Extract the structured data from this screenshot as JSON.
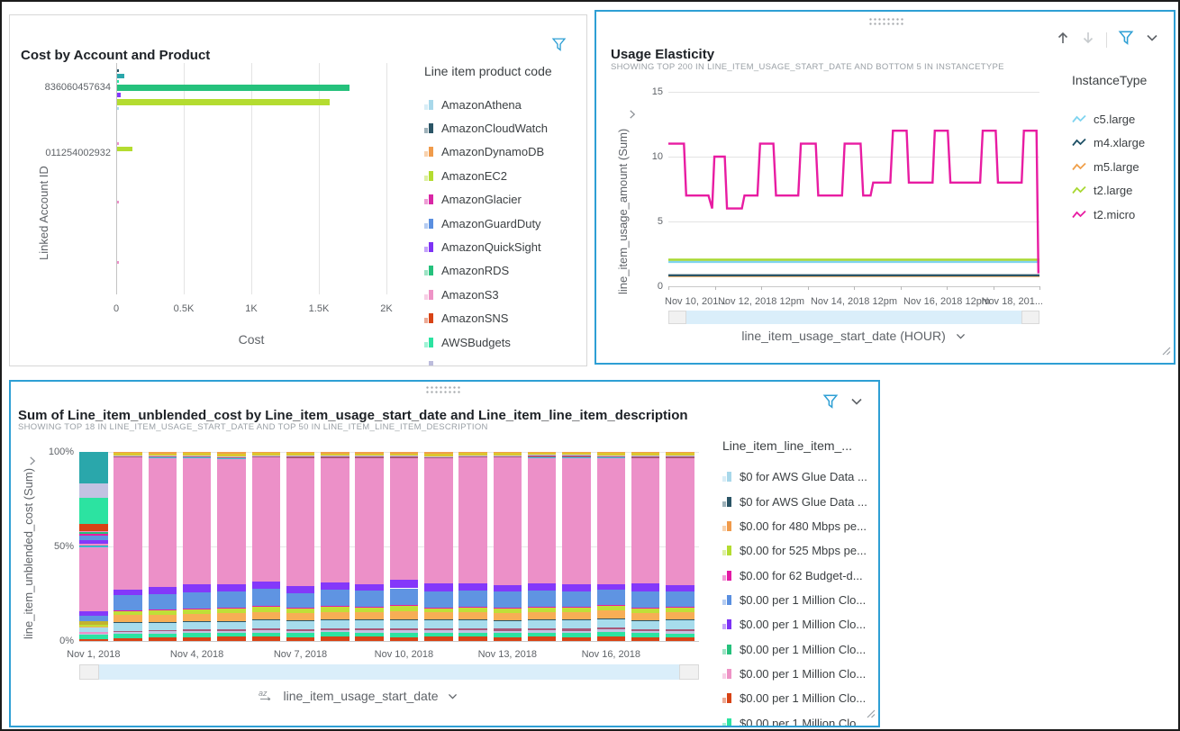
{
  "app": {
    "accent": "#2e9fd4",
    "background": "#ffffff"
  },
  "palette": {
    "red": "#d84315",
    "spring": "#2ce3a1",
    "lav": "#c3c2e2",
    "maroon": "#a85878",
    "ltblue": "#a7dcec",
    "navy": "#2b5566",
    "orange": "#f7ae55",
    "lime": "#bfdf38",
    "magenta": "#e81ca2",
    "blue": "#5f94e2",
    "purple": "#8438fa",
    "pink": "#ec90c8",
    "cyan": "#3ec9e6",
    "maroon2": "#a85878",
    "lav2": "#c3c2e2",
    "yellow": "#ddc62e",
    "orangecap": "#f0a04b",
    "olive": "#c2b22e",
    "teal": "#2aa7ab",
    "green": "#25c17c",
    "tealbar": "#2aa7ab",
    "ec2lime": "#b4dc30"
  },
  "cost_panel": {
    "title": "Cost by Account and Product",
    "y_axis_label": "Linked Account ID",
    "x_axis_label": "Cost",
    "legend_title": "Line item product code",
    "legend": [
      {
        "label": "AmazonAthena",
        "color": "#a8d8ea"
      },
      {
        "label": "AmazonCloudWatch",
        "color": "#2b5566"
      },
      {
        "label": "AmazonDynamoDB",
        "color": "#f09b4b"
      },
      {
        "label": "AmazonEC2",
        "color": "#b4dc30"
      },
      {
        "label": "AmazonGlacier",
        "color": "#d926a5"
      },
      {
        "label": "AmazonGuardDuty",
        "color": "#5a8fe0"
      },
      {
        "label": "AmazonQuickSight",
        "color": "#7d32f5"
      },
      {
        "label": "AmazonRDS",
        "color": "#25c17c"
      },
      {
        "label": "AmazonS3",
        "color": "#ee93c6"
      },
      {
        "label": "AmazonSNS",
        "color": "#d84315"
      },
      {
        "label": "AWSBudgets",
        "color": "#2ce3a1"
      },
      {
        "label": "",
        "color": "#bcbcdc"
      }
    ],
    "chart_data": {
      "type": "bar",
      "orientation": "horizontal",
      "x_ticks": [
        "0",
        "0.5K",
        "1K",
        "1.5K",
        "2K"
      ],
      "x_max": 2000,
      "groups": [
        {
          "account": "836060457634",
          "bars": [
            {
              "color_key": "navy",
              "value": 8
            },
            {
              "color_key": "tealbar",
              "value": 50
            },
            {
              "color_key": "spring",
              "value": 8
            },
            {
              "color_key": "green",
              "value": 1720
            },
            {
              "color_key": "purple",
              "value": 25
            },
            {
              "color_key": "ec2lime",
              "value": 1570
            },
            {
              "color_key": "ltblue",
              "value": 6
            }
          ]
        },
        {
          "account": "011254002932",
          "bars": [
            {
              "color_key": "pink",
              "value": 5
            },
            {
              "color_key": "ec2lime",
              "value": 110
            }
          ]
        },
        {
          "account": "",
          "bars": [
            {
              "color_key": "pink",
              "value": 5
            }
          ]
        },
        {
          "account": "",
          "bars": [
            {
              "color_key": "pink",
              "value": 5
            }
          ]
        }
      ]
    }
  },
  "usage_panel": {
    "title": "Usage Elasticity",
    "subtitle": "SHOWING TOP 200 IN LINE_ITEM_USAGE_START_DATE AND BOTTOM 5 IN INSTANCETYPE",
    "y_axis_label": "line_item_usage_amount (Sum)",
    "x_axis_name": "line_item_usage_start_date (HOUR)",
    "legend_title": "InstanceType",
    "legend": [
      {
        "label": "c5.large",
        "color": "#7fd4f0"
      },
      {
        "label": "m4.xlarge",
        "color": "#1f5166"
      },
      {
        "label": "m5.large",
        "color": "#f0a04b"
      },
      {
        "label": "t2.large",
        "color": "#a8d832"
      },
      {
        "label": "t2.micro",
        "color": "#e81ca2"
      }
    ],
    "chart_data": {
      "type": "line",
      "y_ticks": [
        0,
        5,
        10,
        15
      ],
      "y_max": 15,
      "x_ticks": [
        "Nov 10, 201...",
        "Nov 12, 2018 12pm",
        "Nov 14, 2018 12pm",
        "Nov 16, 2018 12pm",
        "Nov 18, 201..."
      ],
      "series": [
        {
          "name": "m5.large",
          "color": "#f0a04b",
          "points": [
            [
              0,
              0.8
            ],
            [
              1,
              0.8
            ]
          ]
        },
        {
          "name": "m4.xlarge",
          "color": "#2b5566",
          "points": [
            [
              0,
              0.85
            ],
            [
              1,
              0.85
            ]
          ]
        },
        {
          "name": "c5.large",
          "color": "#7fd4f0",
          "points": [
            [
              0,
              1.88
            ],
            [
              1,
              1.88
            ]
          ]
        },
        {
          "name": "t2.large",
          "color": "#a8d832",
          "points": [
            [
              0,
              2.05
            ],
            [
              1,
              2.05
            ]
          ]
        },
        {
          "name": "t2.micro",
          "color": "#e81ca2",
          "points": [
            [
              0,
              11
            ],
            [
              0.042,
              11
            ],
            [
              0.048,
              7
            ],
            [
              0.108,
              7
            ],
            [
              0.118,
              6
            ],
            [
              0.124,
              10
            ],
            [
              0.152,
              10
            ],
            [
              0.158,
              6
            ],
            [
              0.198,
              6
            ],
            [
              0.205,
              7
            ],
            [
              0.24,
              7
            ],
            [
              0.247,
              11
            ],
            [
              0.283,
              11
            ],
            [
              0.29,
              7
            ],
            [
              0.35,
              7
            ],
            [
              0.357,
              11
            ],
            [
              0.397,
              11
            ],
            [
              0.404,
              7
            ],
            [
              0.468,
              7
            ],
            [
              0.475,
              11
            ],
            [
              0.518,
              11
            ],
            [
              0.525,
              7
            ],
            [
              0.545,
              7
            ],
            [
              0.552,
              8
            ],
            [
              0.598,
              8
            ],
            [
              0.605,
              12
            ],
            [
              0.642,
              12
            ],
            [
              0.648,
              8
            ],
            [
              0.712,
              8
            ],
            [
              0.718,
              12
            ],
            [
              0.753,
              12
            ],
            [
              0.76,
              8
            ],
            [
              0.84,
              8
            ],
            [
              0.847,
              12
            ],
            [
              0.882,
              12
            ],
            [
              0.888,
              8
            ],
            [
              0.952,
              8
            ],
            [
              0.958,
              12
            ],
            [
              0.992,
              12
            ],
            [
              0.997,
              1
            ]
          ]
        }
      ]
    }
  },
  "stacked_panel": {
    "title": "Sum of Line_item_unblended_cost by Line_item_usage_start_date and Line_item_line_item_description",
    "subtitle": "SHOWING TOP 18 IN LINE_ITEM_USAGE_START_DATE AND TOP 50 IN LINE_ITEM_LINE_ITEM_DESCRIPTION",
    "y_axis_label": "line_item_unblended_cost (Sum)",
    "x_axis_name": "line_item_usage_start_date",
    "legend_title": "Line_item_line_item_...",
    "legend": [
      {
        "label": "$0 for AWS Glue Data ...",
        "color": "#a8d8ea"
      },
      {
        "label": "$0 for AWS Glue Data ...",
        "color": "#2b5566"
      },
      {
        "label": "$0.00 for 480 Mbps pe...",
        "color": "#f09b4b"
      },
      {
        "label": "$0.00 for 525 Mbps pe...",
        "color": "#b4dc30"
      },
      {
        "label": "$0.00 for 62 Budget-d...",
        "color": "#e31ba5"
      },
      {
        "label": "$0.00 per 1 Million Clo...",
        "color": "#5a8fe0"
      },
      {
        "label": "$0.00 per 1 Million Clo...",
        "color": "#7d32f5"
      },
      {
        "label": "$0.00 per 1 Million Clo...",
        "color": "#25c17c"
      },
      {
        "label": "$0.00 per 1 Million Clo...",
        "color": "#ee93c6"
      },
      {
        "label": "$0.00 per 1 Million Clo...",
        "color": "#d84315"
      },
      {
        "label": "$0.00 per 1 Million Clo...",
        "color": "#2ce3a1"
      }
    ],
    "chart_data": {
      "type": "stacked-bar-100",
      "y_ticks": [
        "0%",
        "50%",
        "100%"
      ],
      "x_tick_labels": [
        "Nov 1, 2018",
        "Nov 4, 2018",
        "Nov 7, 2018",
        "Nov 10, 2018",
        "Nov 13, 2018",
        "Nov 16, 2018"
      ],
      "x_tick_every": 3,
      "segment_order": [
        "red",
        "spring",
        "lav",
        "maroon",
        "ltblue",
        "navy",
        "orange",
        "lime",
        "magenta",
        "blue",
        "purple",
        "pink",
        "cyan",
        "maroon2",
        "lav2",
        "yellow",
        "orangecap"
      ],
      "first_bar_segments": [
        [
          "red",
          0.8
        ],
        [
          "spring",
          2.6
        ],
        [
          "lav",
          0.5
        ],
        [
          "pink",
          0.7
        ],
        [
          "ltblue",
          2.4
        ],
        [
          "orange",
          0.6
        ],
        [
          "lime",
          1.2
        ],
        [
          "olive",
          1.6
        ],
        [
          "blue",
          3.0
        ],
        [
          "purple",
          2.2
        ],
        [
          "pink",
          33.9
        ],
        [
          "cyan",
          0.5
        ],
        [
          "teal",
          0.7
        ],
        [
          "pink",
          0.6
        ],
        [
          "purple",
          2.0
        ],
        [
          "blue",
          2.6
        ],
        [
          "magenta",
          0.6
        ],
        [
          "green",
          0.9
        ],
        [
          "pink",
          0.7
        ],
        [
          "red",
          4.0
        ],
        [
          "spring",
          13.6
        ],
        [
          "lav",
          7.4
        ],
        [
          "teal",
          16.9
        ]
      ],
      "bars": [
        [
          1.6,
          2.0,
          1.0,
          0.8,
          4.4,
          0.3,
          3.6,
          2.0,
          0.3,
          8.0,
          3.2,
          69.6,
          0,
          0.7,
          0.4,
          1.1,
          0.6
        ],
        [
          2.0,
          2.0,
          1.0,
          0.8,
          4.0,
          0.3,
          3.6,
          2.4,
          0.3,
          8.5,
          3.5,
          68.3,
          0.3,
          0.5,
          0.4,
          1.1,
          0.8
        ],
        [
          2.0,
          2.2,
          1.2,
          0.8,
          4.0,
          0.4,
          3.8,
          2.4,
          0.4,
          8.5,
          4.0,
          66.8,
          0.3,
          0.5,
          0.4,
          1.2,
          0.7
        ],
        [
          2.2,
          2.0,
          1.0,
          0.9,
          4.2,
          0.3,
          4.0,
          2.6,
          0.3,
          8.8,
          3.6,
          65.9,
          0.5,
          0.6,
          0.4,
          1.4,
          1.0
        ],
        [
          2.2,
          2.2,
          1.2,
          1.0,
          4.5,
          0.4,
          3.8,
          2.6,
          0.4,
          9.0,
          4.0,
          65.3,
          0,
          0.8,
          0.4,
          1.2,
          0.6
        ],
        [
          2.0,
          2.2,
          1.2,
          1.0,
          4.2,
          0.5,
          3.8,
          2.2,
          0.3,
          8.0,
          3.5,
          67.9,
          0,
          0.8,
          0.4,
          1.4,
          0.6
        ],
        [
          2.2,
          2.4,
          1.2,
          1.0,
          4.2,
          0.4,
          4.0,
          2.6,
          0.4,
          8.8,
          3.8,
          65.6,
          0,
          0.8,
          0.4,
          1.2,
          0.8
        ],
        [
          2.2,
          2.2,
          1.2,
          1.0,
          4.4,
          0.4,
          3.8,
          2.4,
          0.4,
          8.6,
          3.6,
          66.4,
          0,
          0.9,
          0.5,
          1.2,
          0.8
        ],
        [
          2.0,
          2.4,
          1.4,
          1.0,
          4.4,
          0.4,
          4.2,
          2.6,
          0.4,
          9.0,
          4.4,
          64.2,
          0,
          0.9,
          0.5,
          1.2,
          0.8
        ],
        [
          2.2,
          2.2,
          1.2,
          1.0,
          4.2,
          0.4,
          3.8,
          2.4,
          0.4,
          8.4,
          4.2,
          66.0,
          0,
          0.8,
          0.4,
          1.4,
          0.8
        ],
        [
          2.2,
          2.2,
          1.2,
          1.0,
          4.2,
          0.4,
          3.8,
          2.4,
          0.4,
          8.6,
          3.8,
          66.2,
          0,
          0.8,
          0.4,
          1.2,
          0.6
        ],
        [
          2.0,
          2.2,
          1.2,
          1.0,
          4.0,
          0.4,
          3.8,
          2.4,
          0.4,
          8.4,
          3.6,
          67.0,
          0,
          0.8,
          0.4,
          1.2,
          0.6
        ],
        [
          2.2,
          2.2,
          1.2,
          1.0,
          4.2,
          0.4,
          3.8,
          2.4,
          0.4,
          8.6,
          3.8,
          66.0,
          0.4,
          0.8,
          0.4,
          1.2,
          0.4
        ],
        [
          2.0,
          2.2,
          1.2,
          1.0,
          4.4,
          0.4,
          3.8,
          2.4,
          0.4,
          8.4,
          3.6,
          66.4,
          0.5,
          0.8,
          0.4,
          1.2,
          0.4
        ],
        [
          2.4,
          2.4,
          1.2,
          1.0,
          4.4,
          0.6,
          4.0,
          2.6,
          0.4,
          8.0,
          3.0,
          66.0,
          0.5,
          0.8,
          0.4,
          1.4,
          0.4
        ],
        [
          2.0,
          2.2,
          1.2,
          1.0,
          4.2,
          0.4,
          3.8,
          2.4,
          0.4,
          8.6,
          4.0,
          66.2,
          0,
          0.8,
          0.4,
          1.4,
          0.6
        ],
        [
          2.0,
          2.0,
          1.2,
          1.0,
          4.6,
          0.6,
          3.6,
          2.6,
          0.4,
          8.0,
          3.4,
          67.0,
          0,
          0.8,
          0.4,
          1.4,
          0.6
        ]
      ]
    }
  }
}
